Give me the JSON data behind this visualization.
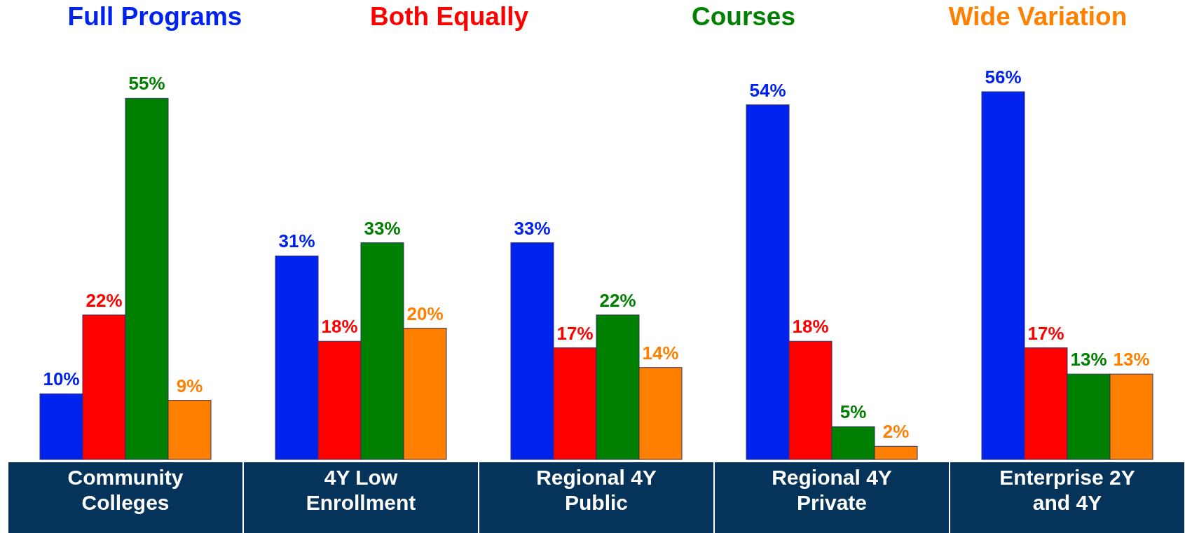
{
  "chart_data": {
    "type": "bar",
    "categories": [
      "Community Colleges",
      "4Y Low Enrollment",
      "Regional 4Y Public",
      "Regional 4Y Private",
      "Enterprise 2Y and 4Y"
    ],
    "series": [
      {
        "name": "Full Programs",
        "color": "#0022ee",
        "values": [
          10,
          31,
          33,
          54,
          56
        ],
        "value_labels": [
          "10%",
          "31%",
          "33%",
          "54%",
          "56%"
        ]
      },
      {
        "name": "Both Equally",
        "color": "#ff0000",
        "values": [
          22,
          18,
          17,
          18,
          17
        ],
        "value_labels": [
          "22%",
          "18%",
          "17%",
          "18%",
          "17%"
        ]
      },
      {
        "name": "Courses",
        "color": "#008000",
        "values": [
          55,
          33,
          22,
          5,
          13
        ],
        "value_labels": [
          "55%",
          "33%",
          "22%",
          "5%",
          "13%"
        ]
      },
      {
        "name": "Wide Variation",
        "color": "#ff8000",
        "values": [
          9,
          20,
          14,
          2,
          13
        ],
        "value_labels": [
          "9%",
          "20%",
          "14%",
          "2%",
          "13%"
        ]
      }
    ],
    "legend": "top",
    "grid": false
  }
}
